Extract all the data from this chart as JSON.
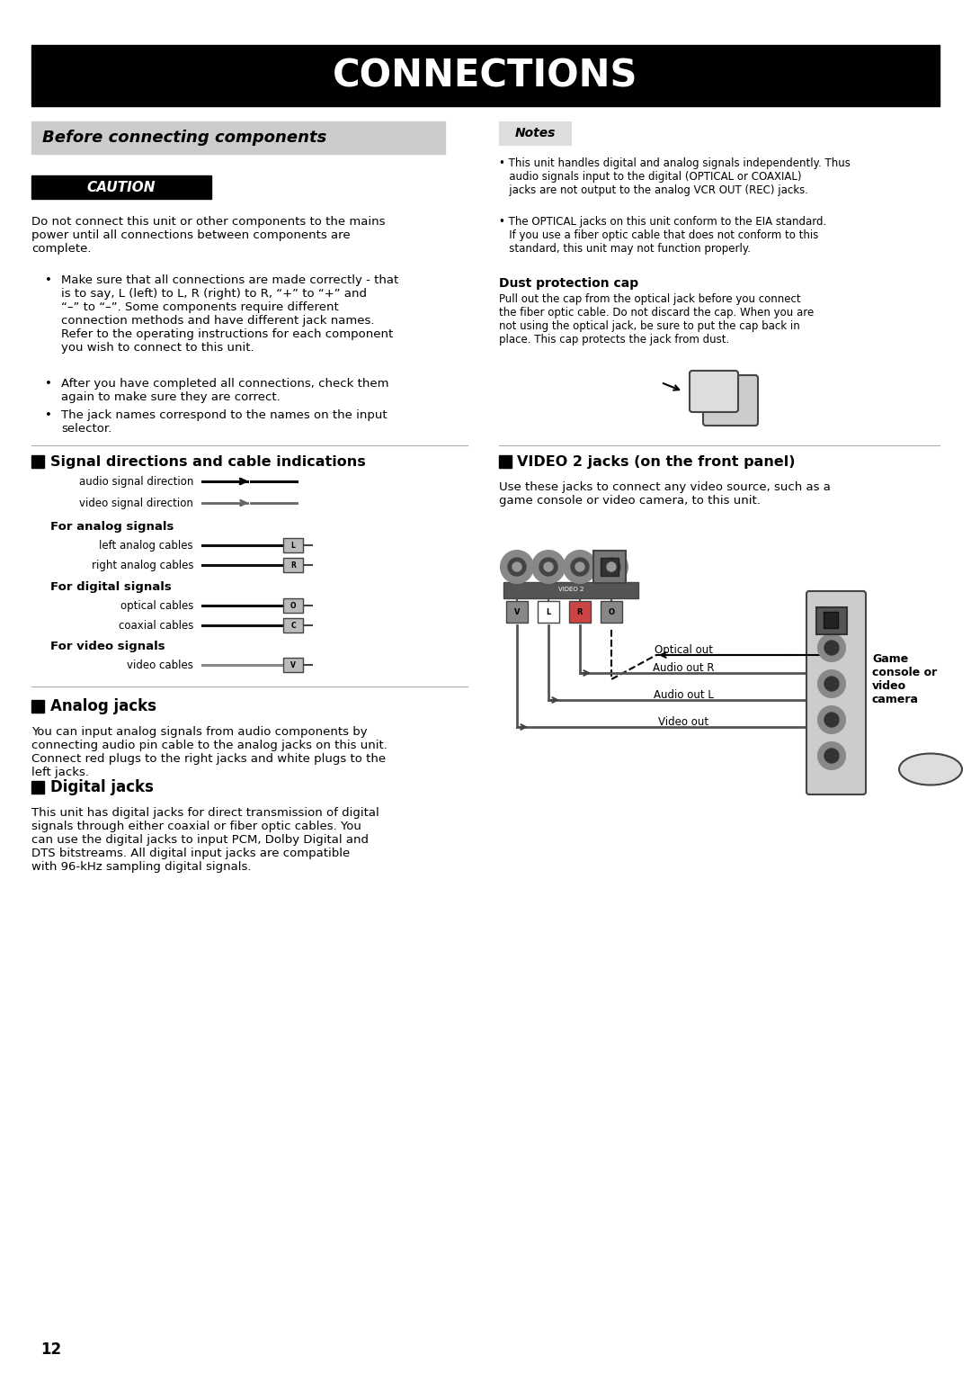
{
  "title": "CONNECTIONS",
  "bg_color": "#ffffff",
  "title_bg": "#000000",
  "title_fg": "#ffffff",
  "section1_title": "Before connecting components",
  "section1_bg": "#cccccc",
  "caution_text": "CAUTION",
  "caution_bg": "#000000",
  "caution_fg": "#ffffff",
  "caution_body": "Do not connect this unit or other components to the mains\npower until all connections between components are\ncomplete.",
  "bullet1": "Make sure that all connections are made correctly - that\nis to say, L (left) to L, R (right) to R, “+” to “+” and\n“–” to “–”. Some components require different\nconnection methods and have different jack names.\nRefer to the operating instructions for each component\nyou wish to connect to this unit.",
  "bullet2": "After you have completed all connections, check them\nagain to make sure they are correct.",
  "bullet3": "The jack names correspond to the names on the input\nselector.",
  "signal_section_title": "Signal directions and cable indications",
  "analog_title": "For analog signals",
  "digital_title": "For digital signals",
  "video_sig_title": "For video signals",
  "analog_jacks_title": "Analog jacks",
  "analog_jacks_body": "You can input analog signals from audio components by\nconnecting audio pin cable to the analog jacks on this unit.\nConnect red plugs to the right jacks and white plugs to the\nleft jacks.",
  "digital_jacks_title": "Digital jacks",
  "digital_jacks_body": "This unit has digital jacks for direct transmission of digital\nsignals through either coaxial or fiber optic cables. You\ncan use the digital jacks to input PCM, Dolby Digital and\nDTS bitstreams. All digital input jacks are compatible\nwith 96-kHz sampling digital signals.",
  "notes_title": "Notes",
  "note1": "This unit handles digital and analog signals independently. Thus\naudio signals input to the digital (OPTICAL or COAXIAL)\njacks are not output to the analog VCR OUT (REC) jacks.",
  "note2": "The OPTICAL jacks on this unit conform to the EIA standard.\nIf you use a fiber optic cable that does not conform to this\nstandard, this unit may not function properly.",
  "dust_title": "Dust protection cap",
  "dust_body": "Pull out the cap from the optical jack before you connect\nthe fiber optic cable. Do not discard the cap. When you are\nnot using the optical jack, be sure to put the cap back in\nplace. This cap protects the jack from dust.",
  "video2_title": "VIDEO 2 jacks (on the front panel)",
  "video2_body": "Use these jacks to connect any video source, such as a\ngame console or video camera, to this unit.",
  "page_num": "12"
}
